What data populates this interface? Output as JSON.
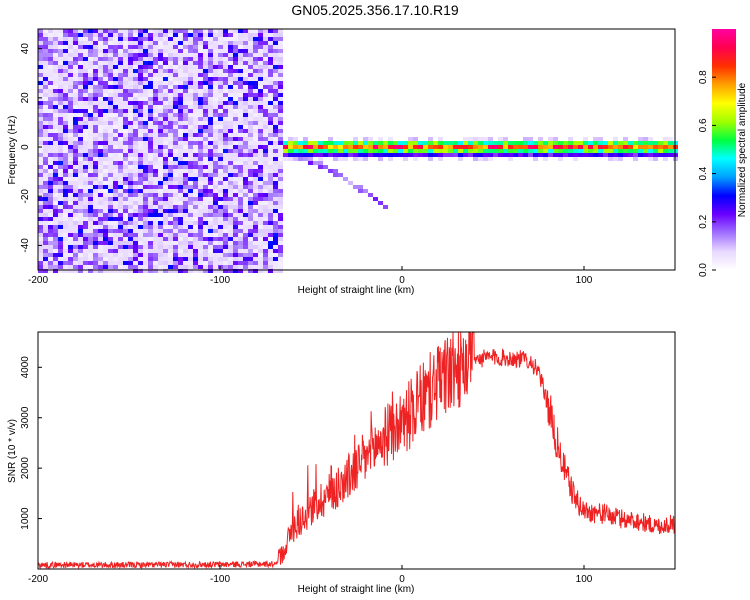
{
  "title": "GN05.2025.356.17.10.R19",
  "chart_data": [
    {
      "type": "heatmap",
      "title": "GN05.2025.356.17.10.R19",
      "xlabel": "Height of straight line (km)",
      "ylabel": "Frequency (Hz)",
      "xlim": [
        -200,
        150
      ],
      "ylim": [
        -50,
        48
      ],
      "xticks": [
        -200,
        -100,
        0,
        100
      ],
      "yticks": [
        -40,
        -20,
        0,
        20,
        40
      ],
      "colorbar": {
        "label": "Normalized spectral amplitude",
        "range": [
          0,
          1
        ],
        "ticks": [
          0.0,
          0.2,
          0.4,
          0.6,
          0.8
        ],
        "colors": [
          "#ffffff",
          "#e8d8ff",
          "#a070ff",
          "#6a00ff",
          "#0000ff",
          "#00a0ff",
          "#00ffff",
          "#00ff40",
          "#a0ff00",
          "#ffff00",
          "#ffa000",
          "#ff3000",
          "#ff0050",
          "#ff00a0"
        ]
      },
      "regions": [
        {
          "name": "noise",
          "x_range": [
            -200,
            -66
          ],
          "f_range": [
            -50,
            48
          ],
          "amplitude": "0.2-0.4 scattered"
        },
        {
          "name": "signal-line",
          "x_range": [
            -68,
            150
          ],
          "center_frequency_hz": 0,
          "half_width_hz": 3,
          "peak_amplitude": 0.95
        },
        {
          "name": "chirp-tail",
          "x_range": [
            -60,
            -10
          ],
          "f_range": [
            -25,
            -2
          ]
        }
      ]
    },
    {
      "type": "line",
      "xlabel": "Height of straight line (km)",
      "ylabel": "SNR (10 * v/v)",
      "xlim": [
        -200,
        150
      ],
      "ylim": [
        0,
        4700
      ],
      "xticks": [
        -200,
        -100,
        0,
        100
      ],
      "yticks": [
        1000,
        2000,
        3000,
        4000
      ],
      "series": [
        {
          "name": "SNR",
          "color": "#ee2222",
          "x": [
            -200,
            -150,
            -100,
            -70,
            -66,
            -60,
            -50,
            -40,
            -30,
            -20,
            -10,
            0,
            10,
            20,
            30,
            40,
            50,
            60,
            70,
            75,
            80,
            85,
            90,
            95,
            100,
            110,
            120,
            130,
            140,
            150
          ],
          "y": [
            80,
            80,
            90,
            100,
            300,
            800,
            1200,
            1500,
            1800,
            2200,
            2600,
            2900,
            3300,
            3700,
            4000,
            4150,
            4200,
            4180,
            4150,
            3900,
            3300,
            2500,
            1900,
            1400,
            1150,
            1100,
            1000,
            950,
            850,
            900
          ]
        }
      ]
    }
  ]
}
